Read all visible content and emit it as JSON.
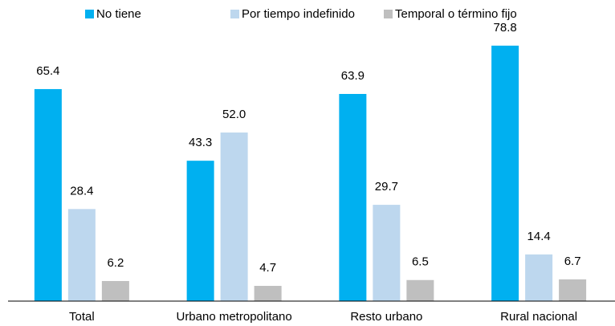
{
  "chart_data": {
    "type": "bar",
    "categories": [
      "Total",
      "Urbano metropolitano",
      "Resto urbano",
      "Rural nacional"
    ],
    "series": [
      {
        "name": "No tiene",
        "color": "#00b0f0",
        "values": [
          65.4,
          43.3,
          63.9,
          78.8
        ],
        "value_labels": [
          "65.4",
          "43.3",
          "63.9",
          "78.8"
        ]
      },
      {
        "name": "Por tiempo indefinido",
        "color": "#bdd7ee",
        "values": [
          28.4,
          52.0,
          29.7,
          14.4
        ],
        "value_labels": [
          "28.4",
          "52.0",
          "29.7",
          "14.4"
        ]
      },
      {
        "name": "Temporal o término fijo",
        "color": "#bfbfbf",
        "values": [
          6.2,
          4.7,
          6.5,
          6.7
        ],
        "value_labels": [
          "6.2",
          "4.7",
          "6.5",
          "6.7"
        ]
      }
    ],
    "ylim": [
      0,
      80
    ],
    "legend": "top"
  }
}
